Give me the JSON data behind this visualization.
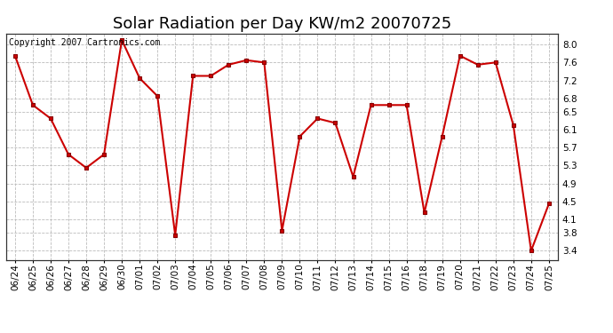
{
  "title": "Solar Radiation per Day KW/m2 20070725",
  "copyright_text": "Copyright 2007 Cartronics.com",
  "dates": [
    "06/24",
    "06/25",
    "06/26",
    "06/27",
    "06/28",
    "06/29",
    "06/30",
    "07/01",
    "07/02",
    "07/03",
    "07/04",
    "07/05",
    "07/06",
    "07/07",
    "07/08",
    "07/09",
    "07/10",
    "07/11",
    "07/12",
    "07/13",
    "07/14",
    "07/15",
    "07/16",
    "07/18",
    "07/19",
    "07/20",
    "07/21",
    "07/22",
    "07/23",
    "07/24",
    "07/25"
  ],
  "values": [
    7.75,
    6.65,
    6.35,
    5.55,
    5.25,
    5.55,
    8.1,
    7.25,
    6.85,
    3.75,
    7.3,
    7.3,
    7.55,
    7.65,
    7.6,
    3.85,
    5.95,
    6.35,
    6.25,
    5.05,
    6.65,
    6.65,
    6.65,
    4.25,
    5.95,
    7.75,
    7.55,
    7.6,
    6.2,
    3.4,
    4.45
  ],
  "line_color": "#cc0000",
  "marker_color": "#cc0000",
  "bg_color": "#ffffff",
  "grid_color": "#bbbbbb",
  "ylim_min": 3.2,
  "ylim_max": 8.25,
  "yticks": [
    3.4,
    3.8,
    4.1,
    4.5,
    4.9,
    5.3,
    5.7,
    6.1,
    6.5,
    6.8,
    7.2,
    7.6,
    8.0
  ],
  "title_fontsize": 13,
  "copyright_fontsize": 7,
  "tick_fontsize": 7.5
}
